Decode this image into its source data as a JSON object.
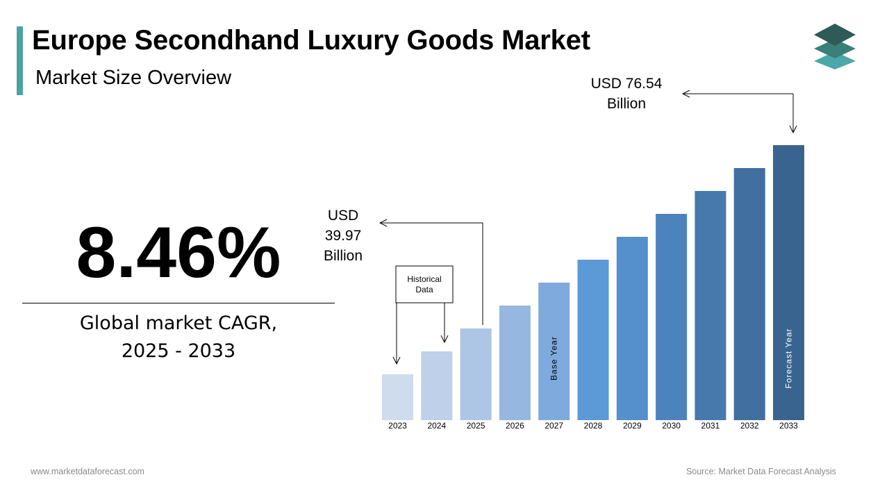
{
  "header": {
    "title": "Europe Secondhand Luxury Goods Market",
    "subtitle": "Market Size Overview"
  },
  "logo_icon": "stacked-layers-icon",
  "cagr": {
    "value": "8.46%",
    "label_line1": "Global market CAGR,",
    "label_line2": "2025 - 2033"
  },
  "callouts": {
    "start": {
      "line1": "USD",
      "line2": "39.97",
      "line3": "Billion"
    },
    "end": {
      "line1": "USD 76.54",
      "line2": "Billion"
    },
    "historical": {
      "line1": "Historical",
      "line2": "Data"
    }
  },
  "footer": {
    "website": "www.marketdataforecast.com",
    "source": "Source: Market Data Forecast Analysis"
  },
  "chart_data": {
    "type": "bar",
    "title": "",
    "xlabel": "",
    "ylabel": "",
    "categories": [
      "2023",
      "2024",
      "2025",
      "2026",
      "2027",
      "2028",
      "2029",
      "2030",
      "2031",
      "2032",
      "2033"
    ],
    "values": [
      20,
      30,
      40,
      50,
      60,
      70,
      80,
      90,
      100,
      110,
      120
    ],
    "colors": [
      "#cfdcee",
      "#bed0ea",
      "#adc6e6",
      "#96b8e0",
      "#7eaadd",
      "#5b9ad7",
      "#5590cc",
      "#4d83bd",
      "#4779ad",
      "#416f9f",
      "#3a6490"
    ],
    "bar_labels": {
      "2027": "Base Year",
      "2033": "Forecast Year"
    },
    "note": ""
  }
}
